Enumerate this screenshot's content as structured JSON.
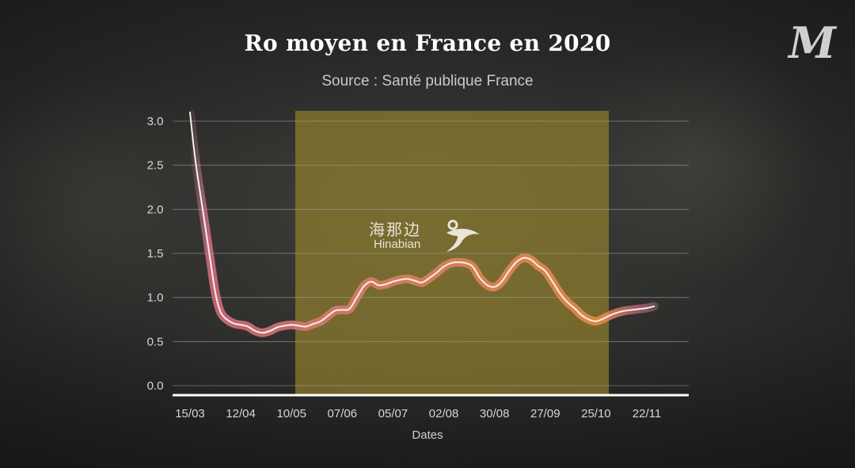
{
  "header": {
    "title": "Ro moyen en France en 2020",
    "subtitle": "Source : Santé publique France",
    "logo_text": "M"
  },
  "watermark": {
    "chinese": "海那边",
    "latin": "Hinabian"
  },
  "colors": {
    "highlight_band": "#8f7e2e",
    "line_start": "#e8a0b0",
    "line_highlight": "#e07a3a",
    "grid": "#9a9a9a",
    "text": "#e8e8e8"
  },
  "chart_data": {
    "type": "line",
    "title": "Ro moyen en France en 2020",
    "subtitle": "Source : Santé publique France",
    "xlabel": "Dates",
    "ylabel": "",
    "ylim": [
      0,
      3.0
    ],
    "yticks": [
      "0.0",
      "0.5",
      "1.0",
      "1.5",
      "2.0",
      "2.5",
      "3.0"
    ],
    "xticks": [
      "15/03",
      "12/04",
      "10/05",
      "07/06",
      "05/07",
      "02/08",
      "30/08",
      "27/09",
      "25/10",
      "22/11"
    ],
    "highlighted_period": {
      "start": "11/05",
      "end": "30/10"
    },
    "grid": "horizontal",
    "series": [
      {
        "x": [
          "15/03",
          "18/03",
          "22/03",
          "26/03",
          "29/03",
          "01/04",
          "05/04",
          "09/04",
          "12/04",
          "16/04",
          "20/04",
          "24/04",
          "28/04",
          "02/05",
          "06/05",
          "10/05",
          "14/05",
          "18/05",
          "22/05",
          "26/05",
          "30/05",
          "03/06",
          "07/06",
          "11/06",
          "15/06",
          "19/06",
          "23/06",
          "27/06",
          "01/07",
          "05/07",
          "09/07",
          "13/07",
          "17/07",
          "21/07",
          "25/07",
          "29/07",
          "02/08",
          "06/08",
          "10/08",
          "14/08",
          "18/08",
          "22/08",
          "26/08",
          "30/08",
          "03/09",
          "07/09",
          "11/09",
          "15/09",
          "19/09",
          "23/09",
          "27/09",
          "01/10",
          "05/10",
          "09/10",
          "13/10",
          "17/10",
          "21/10",
          "25/10",
          "29/10",
          "02/11",
          "06/11",
          "10/11",
          "14/11",
          "18/11",
          "22/11",
          "26/11"
        ],
        "values": [
          3.1,
          2.55,
          2.0,
          1.45,
          1.05,
          0.83,
          0.74,
          0.7,
          0.69,
          0.67,
          0.62,
          0.6,
          0.62,
          0.66,
          0.68,
          0.69,
          0.68,
          0.67,
          0.7,
          0.73,
          0.79,
          0.85,
          0.86,
          0.87,
          1.0,
          1.13,
          1.18,
          1.14,
          1.15,
          1.18,
          1.2,
          1.21,
          1.19,
          1.17,
          1.22,
          1.28,
          1.35,
          1.39,
          1.4,
          1.39,
          1.35,
          1.22,
          1.14,
          1.12,
          1.18,
          1.3,
          1.4,
          1.45,
          1.43,
          1.36,
          1.3,
          1.18,
          1.05,
          0.95,
          0.88,
          0.8,
          0.75,
          0.73,
          0.76,
          0.8,
          0.83,
          0.85,
          0.86,
          0.87,
          0.88,
          0.9
        ]
      }
    ]
  }
}
